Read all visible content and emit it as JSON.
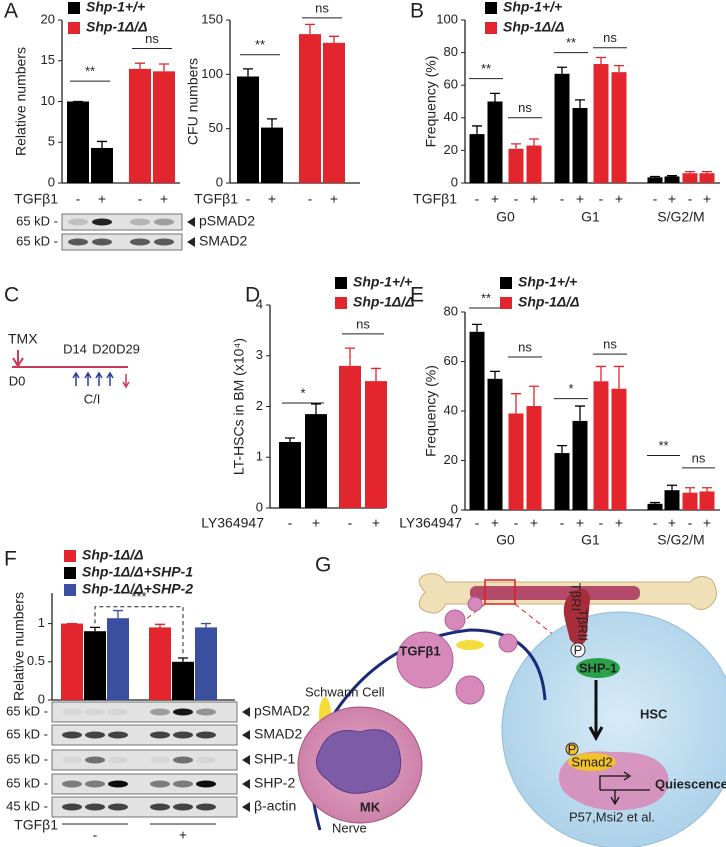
{
  "panel_labels": [
    "A",
    "B",
    "C",
    "D",
    "E",
    "F",
    "G"
  ],
  "chart_data": [
    {
      "type": "bar",
      "y_label": "Relative numbers",
      "x_label": "TGFβ1",
      "categories": [
        "-",
        "+",
        "-",
        "+"
      ],
      "series": [
        {
          "name": "Shp-1+/+",
          "color": "#000000",
          "values": [
            10,
            4.3,
            null,
            null
          ],
          "errors": [
            0,
            0.8,
            null,
            null
          ]
        },
        {
          "name": "Shp-1Δ/Δ",
          "color": "#e3262d",
          "values": [
            null,
            null,
            14,
            13.7
          ],
          "errors": [
            null,
            null,
            0.7,
            0.9
          ]
        }
      ],
      "ylim": [
        0,
        20
      ],
      "yticks": [
        0,
        5,
        10,
        15,
        20
      ],
      "annotations": [
        "**",
        "ns"
      ]
    },
    {
      "type": "bar",
      "y_label": "CFU numbers",
      "x_label": "TGFβ1",
      "categories": [
        "-",
        "+",
        "-",
        "+"
      ],
      "series": [
        {
          "color": "#000000",
          "values": [
            98,
            51,
            null,
            null
          ],
          "errors": [
            7,
            8,
            null,
            null
          ]
        },
        {
          "color": "#e3262d",
          "values": [
            null,
            null,
            137,
            129
          ],
          "errors": [
            null,
            null,
            9,
            6
          ]
        }
      ],
      "ylim": [
        0,
        150
      ],
      "yticks": [
        0,
        50,
        100,
        150
      ],
      "annotations": [
        "**",
        "ns"
      ]
    },
    {
      "type": "bar",
      "y_label": "Frequency (%)",
      "x_label": "TGFβ1",
      "categories": [
        "-",
        "+",
        "-",
        "+",
        "-",
        "+",
        "-",
        "+",
        "-",
        "+",
        "-",
        "+"
      ],
      "groups": [
        "G0",
        "G1",
        "S/G2/M"
      ],
      "series": [
        {
          "name": "Shp-1+/+",
          "color": "#000000",
          "values": [
            30,
            50,
            null,
            null,
            67,
            46,
            null,
            null,
            3.5,
            4,
            null,
            null
          ],
          "errors": [
            5,
            5,
            null,
            null,
            4,
            5,
            null,
            null,
            0.5,
            0.5,
            null,
            null
          ]
        },
        {
          "name": "Shp-1Δ/Δ",
          "color": "#e3262d",
          "values": [
            null,
            null,
            21,
            23,
            null,
            null,
            73,
            68,
            null,
            null,
            6,
            6
          ],
          "errors": [
            null,
            null,
            3,
            4,
            null,
            null,
            4,
            4,
            null,
            null,
            1,
            1
          ]
        }
      ],
      "ylim": [
        0,
        100
      ],
      "yticks": [
        0,
        20,
        40,
        60,
        80,
        100
      ],
      "annotations": [
        "**",
        "ns",
        "**",
        "ns"
      ]
    },
    {
      "type": "bar",
      "y_label": "LT-HSCs in BM (x10⁴)",
      "x_label": "LY364947",
      "categories": [
        "-",
        "+",
        "-",
        "+"
      ],
      "series": [
        {
          "name": "Shp-1+/+",
          "color": "#000000",
          "values": [
            1.3,
            1.85,
            null,
            null
          ],
          "errors": [
            0.08,
            0.2,
            null,
            null
          ]
        },
        {
          "name": "Shp-1Δ/Δ",
          "color": "#e3262d",
          "values": [
            null,
            null,
            2.8,
            2.5
          ],
          "errors": [
            null,
            null,
            0.35,
            0.25
          ]
        }
      ],
      "ylim": [
        0,
        4
      ],
      "yticks": [
        0,
        1,
        2,
        3,
        4
      ],
      "annotations": [
        "*",
        "ns"
      ]
    },
    {
      "type": "bar",
      "y_label": "Frequency (%)",
      "x_label": "LY364947",
      "categories": [
        "-",
        "+",
        "-",
        "+",
        "-",
        "+",
        "-",
        "+",
        "-",
        "+",
        "-",
        "+"
      ],
      "groups": [
        "G0",
        "G1",
        "S/G2/M"
      ],
      "series": [
        {
          "name": "Shp-1+/+",
          "color": "#000000",
          "values": [
            72,
            53,
            null,
            null,
            23,
            36,
            null,
            null,
            2.5,
            8,
            null,
            null
          ],
          "errors": [
            3,
            3,
            null,
            null,
            3,
            6,
            null,
            null,
            0.5,
            2,
            null,
            null
          ]
        },
        {
          "name": "Shp-1Δ/Δ",
          "color": "#e3262d",
          "values": [
            null,
            null,
            39,
            42,
            null,
            null,
            52,
            49,
            null,
            null,
            7,
            7.5
          ],
          "errors": [
            null,
            null,
            8,
            8,
            null,
            null,
            6,
            9,
            null,
            null,
            2,
            1.5
          ]
        }
      ],
      "ylim": [
        0,
        80
      ],
      "yticks": [
        0,
        20,
        40,
        60,
        80
      ],
      "annotations": [
        "**",
        "ns",
        "*",
        "ns",
        "**",
        "ns"
      ]
    },
    {
      "type": "bar",
      "y_label": "Relative numbers",
      "x_label": "TGFβ1",
      "groups": [
        "-",
        "+"
      ],
      "series": [
        {
          "name": "Shp-1Δ/Δ",
          "color": "#e3262d",
          "values": [
            1.0,
            null,
            null,
            0.95,
            null,
            null
          ],
          "errors": [
            0,
            null,
            null,
            0.04,
            null,
            null
          ]
        },
        {
          "name": "Shp-1Δ/Δ+SHP-1",
          "color": "#000000",
          "values": [
            null,
            0.9,
            null,
            null,
            0.5,
            null
          ],
          "errors": [
            null,
            0.05,
            null,
            null,
            0.05,
            null
          ]
        },
        {
          "name": "Shp-1Δ/Δ+SHP-2",
          "color": "#3a4fa0",
          "values": [
            null,
            null,
            1.07,
            null,
            null,
            0.95
          ],
          "errors": [
            null,
            null,
            0.1,
            null,
            null,
            0.05
          ]
        }
      ],
      "ylim": [
        0,
        1.4
      ],
      "yticks": [
        0,
        0.5,
        1
      ],
      "annotations": [
        "***"
      ]
    }
  ],
  "blots": [
    {
      "rows": [
        {
          "size": "65 kD -",
          "protein": "pSMAD2"
        },
        {
          "size": "65 kD -",
          "protein": "SMAD2"
        }
      ]
    },
    {
      "rows": [
        {
          "size": "65 kD -",
          "protein": "pSMAD2"
        },
        {
          "size": "65 kD -",
          "protein": "SMAD2"
        },
        {
          "size": "65 kD -",
          "protein": "SHP-1"
        },
        {
          "size": "65 kD -",
          "protein": "SHP-2"
        },
        {
          "size": "45 kD -",
          "protein": "β-actin"
        }
      ]
    }
  ],
  "timeline": {
    "drug": "TMX",
    "days": [
      "D0",
      "D14",
      "D20",
      "D29"
    ],
    "treatment": "C/I"
  },
  "diagram": {
    "ligand": "TGFβ1",
    "schwann": "Schwann Cell",
    "nerve": "Nerve",
    "mk": "MK",
    "receptor1": "TβRI",
    "receptor2": "TβRII",
    "phospho": "P",
    "phosphatase": "SHP-1",
    "hsc": "HSC",
    "smad": "Smad2",
    "state": "Quiescence",
    "targets": "P57,Msi2 et al."
  }
}
